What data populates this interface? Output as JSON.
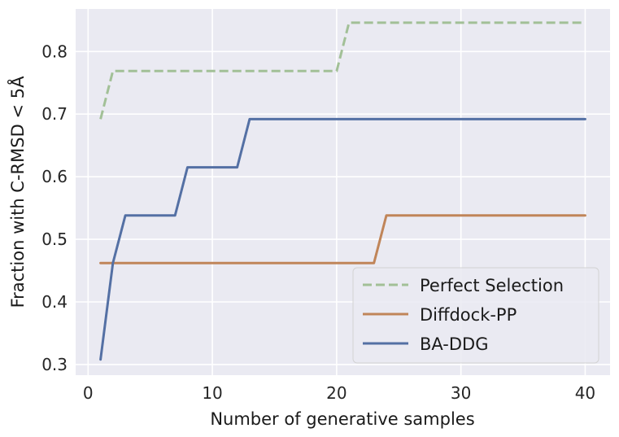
{
  "chart_data": {
    "type": "line",
    "xlabel": "Number of generative samples",
    "ylabel": "Fraction with C-RMSD < 5Å",
    "xlim": [
      -1,
      42
    ],
    "ylim": [
      0.283,
      0.868
    ],
    "xticks": [
      0,
      10,
      20,
      30,
      40
    ],
    "yticks": [
      0.3,
      0.4,
      0.5,
      0.6,
      0.7,
      0.8
    ],
    "xtick_labels": [
      "0",
      "10",
      "20",
      "30",
      "40"
    ],
    "ytick_labels": [
      "0.3",
      "0.4",
      "0.5",
      "0.6",
      "0.7",
      "0.8"
    ],
    "grid": true,
    "legend_position": "lower-right",
    "series": [
      {
        "name": "Perfect Selection",
        "color": "#a2c097",
        "style": "dashed",
        "points": [
          [
            1,
            0.692
          ],
          [
            2,
            0.769
          ],
          [
            20,
            0.769
          ],
          [
            21,
            0.846
          ],
          [
            40,
            0.846
          ]
        ]
      },
      {
        "name": "Diffdock-PP",
        "color": "#c08559",
        "style": "solid",
        "points": [
          [
            1,
            0.462
          ],
          [
            23,
            0.462
          ],
          [
            24,
            0.538
          ],
          [
            40,
            0.538
          ]
        ]
      },
      {
        "name": "BA-DDG",
        "color": "#5470a4",
        "style": "solid",
        "points": [
          [
            1,
            0.308
          ],
          [
            2,
            0.462
          ],
          [
            3,
            0.538
          ],
          [
            7,
            0.538
          ],
          [
            8,
            0.615
          ],
          [
            12,
            0.615
          ],
          [
            13,
            0.692
          ],
          [
            40,
            0.692
          ]
        ]
      }
    ]
  }
}
